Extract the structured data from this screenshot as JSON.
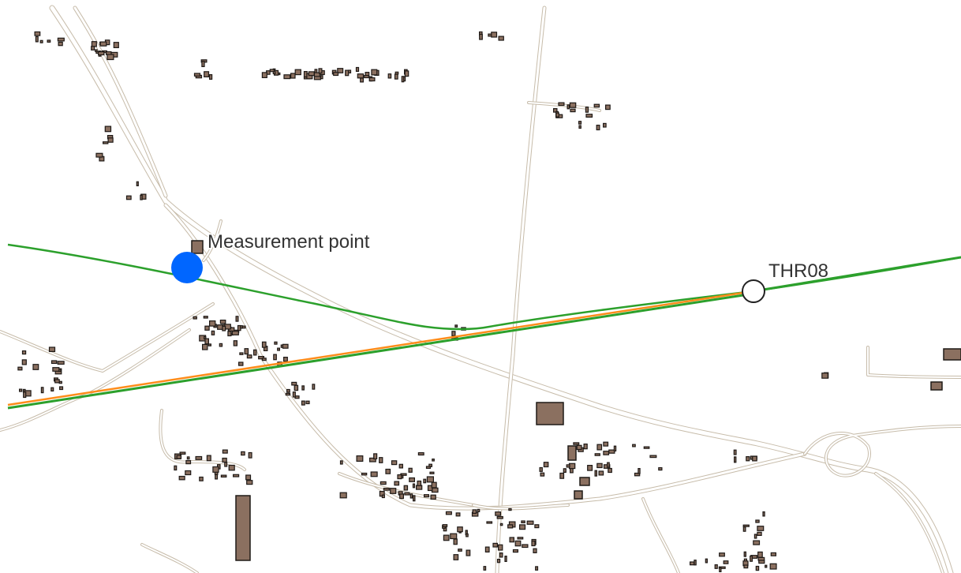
{
  "map": {
    "labels": {
      "measurement_point": "Measurement point",
      "threshold": "THR08"
    },
    "colors": {
      "background": "#ffffff",
      "road_fill": "#ffffff",
      "road_casing": "#c7bcaa",
      "building_fill": "#8b7060",
      "building_stroke": "#1f1a17",
      "flight_track_green": "#2ca02c",
      "flight_track_orange": "#ff8c1a",
      "measurement_marker": "#0066ff",
      "threshold_marker_fill": "#ffffff",
      "threshold_marker_stroke": "#222222",
      "label_text": "#333333"
    },
    "layers": [
      "roads",
      "buildings",
      "flight-tracks",
      "measurement-point",
      "threshold-marker"
    ]
  }
}
